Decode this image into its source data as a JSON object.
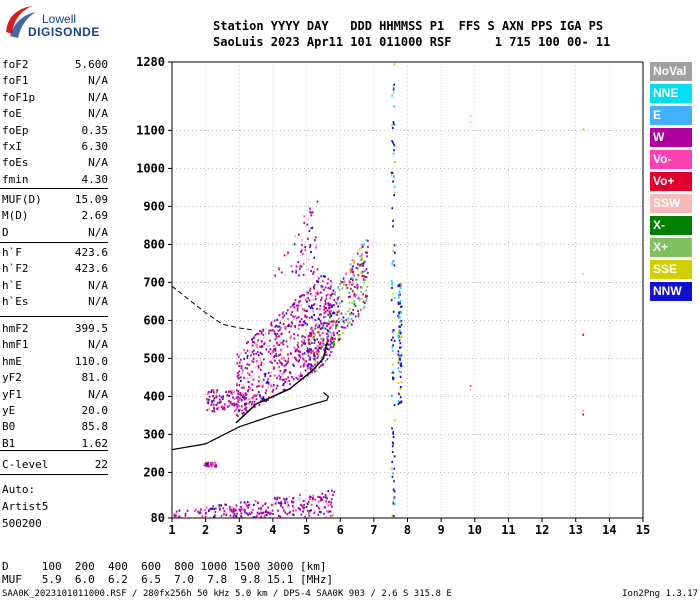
{
  "logo": {
    "line1": "Lowell",
    "line2": "DIGISONDE"
  },
  "header": {
    "line1": "Station YYYY DAY   DDD HHMMSS P1  FFS S AXN PPS IGA PS",
    "line2": "SaoLuis 2023 Apr11 101 011000 RSF      1 715 100 00- 11"
  },
  "params_group1": [
    {
      "name": "foF2",
      "value": "5.600"
    },
    {
      "name": "foF1",
      "value": "N/A"
    },
    {
      "name": "foF1p",
      "value": "N/A"
    },
    {
      "name": "foE",
      "value": "N/A"
    },
    {
      "name": "foEp",
      "value": "0.35"
    },
    {
      "name": "fxI",
      "value": "6.30"
    },
    {
      "name": "foEs",
      "value": "N/A"
    },
    {
      "name": "fmin",
      "value": "4.30"
    }
  ],
  "params_group2": [
    {
      "name": "MUF(D)",
      "value": "15.09"
    },
    {
      "name": "M(D)",
      "value": "2.69"
    },
    {
      "name": "D",
      "value": "N/A"
    }
  ],
  "params_group3": [
    {
      "name": "h`F",
      "value": "423.6"
    },
    {
      "name": "h`F2",
      "value": "423.6"
    },
    {
      "name": "h`E",
      "value": "N/A"
    },
    {
      "name": "h`Es",
      "value": "N/A"
    }
  ],
  "params_group4": [
    {
      "name": "hmF2",
      "value": "399.5"
    },
    {
      "name": "hmF1",
      "value": "N/A"
    },
    {
      "name": "hmE",
      "value": "110.0"
    },
    {
      "name": "yF2",
      "value": "81.0"
    },
    {
      "name": "yF1",
      "value": "N/A"
    },
    {
      "name": "yE",
      "value": "20.0"
    },
    {
      "name": "B0",
      "value": "85.8"
    },
    {
      "name": "B1",
      "value": "1.62"
    }
  ],
  "params_group5": [
    {
      "name": "C-level",
      "value": "22"
    }
  ],
  "auto": {
    "line1": "Auto:",
    "line2": "Artist5",
    "line3": "500200"
  },
  "bottom": {
    "d_line": "D     100  200  400  600  800 1000 1500 3000 [km]",
    "muf_line": "MUF   5.9  6.0  6.2  6.5  7.0  7.8  9.8 15.1 [MHz]"
  },
  "footer": {
    "left": "SAA0K_2023101011000.RSF / 280fx256h 50 kHz 5.0 km / DPS-4 SAA0K 903 / 2.6 S 315.8 E",
    "right": "Ion2Png 1.3.17"
  },
  "legend": [
    {
      "label": "NoVal",
      "color": "#a0a0a0"
    },
    {
      "label": "NNE",
      "color": "#00e0f0"
    },
    {
      "label": "E",
      "color": "#40b0ff"
    },
    {
      "label": "W",
      "color": "#b000a0"
    },
    {
      "label": "Vo-",
      "color": "#ff40b0"
    },
    {
      "label": "Vo+",
      "color": "#e00030"
    },
    {
      "label": "SSW",
      "color": "#f8b8b8"
    },
    {
      "label": "X-",
      "color": "#008000"
    },
    {
      "label": "X+",
      "color": "#80c060"
    },
    {
      "label": "SSE",
      "color": "#d0d000"
    },
    {
      "label": "NNW",
      "color": "#1010d0"
    }
  ],
  "chart_data": {
    "type": "scatter",
    "title": "",
    "xlabel": "",
    "ylabel": "",
    "xlim": [
      1,
      15
    ],
    "ylim": [
      80,
      1280
    ],
    "x_ticks": [
      1,
      2,
      3,
      4,
      5,
      6,
      7,
      8,
      9,
      10,
      11,
      12,
      13,
      14,
      15
    ],
    "y_ticks": [
      80,
      200,
      300,
      400,
      500,
      600,
      700,
      800,
      900,
      1000,
      1100,
      1280
    ],
    "grid": true,
    "legend_position": "right",
    "profile_solid": [
      [
        1.0,
        260
      ],
      [
        2.0,
        275
      ],
      [
        3.0,
        320
      ],
      [
        4.0,
        350
      ],
      [
        5.0,
        375
      ],
      [
        5.6,
        390
      ],
      [
        5.65,
        400
      ],
      [
        5.5,
        410
      ]
    ],
    "profile_dashed": [
      [
        1.0,
        690
      ],
      [
        1.5,
        655
      ],
      [
        2.0,
        620
      ],
      [
        2.5,
        590
      ],
      [
        3.0,
        580
      ],
      [
        3.4,
        575
      ]
    ],
    "trace_black": [
      [
        2.9,
        330
      ],
      [
        3.5,
        380
      ],
      [
        4.5,
        420
      ],
      [
        5.2,
        470
      ],
      [
        5.5,
        500
      ],
      [
        5.6,
        540
      ]
    ],
    "clusters": [
      {
        "region": "F2 main",
        "xmin": 2.9,
        "xmax": 5.8,
        "ymin": 350,
        "ymax": 720,
        "dominant": "W"
      },
      {
        "region": "F2 upper",
        "xmin": 3.9,
        "xmax": 5.3,
        "ymin": 720,
        "ymax": 960,
        "dominant": "W"
      },
      {
        "region": "F2 mixed",
        "xmin": 5.0,
        "xmax": 6.8,
        "ymin": 430,
        "ymax": 820,
        "dominant": "Vo-"
      },
      {
        "region": "low F",
        "xmin": 2.0,
        "xmax": 3.2,
        "ymin": 360,
        "ymax": 420,
        "dominant": "W"
      },
      {
        "region": "E/sporadic",
        "xmin": 1.0,
        "xmax": 5.8,
        "ymin": 84,
        "ymax": 160,
        "dominant": "W"
      },
      {
        "region": "Es patch",
        "xmin": 1.9,
        "xmax": 2.3,
        "ymin": 218,
        "ymax": 228,
        "dominant": "W"
      },
      {
        "region": "interference 7.55",
        "xmin": 7.5,
        "xmax": 7.6,
        "ymin": 84,
        "ymax": 1280,
        "dominant": "NNW"
      },
      {
        "region": "interference 7.75",
        "xmin": 7.7,
        "xmax": 7.8,
        "ymin": 380,
        "ymax": 700,
        "dominant": "NNW"
      }
    ],
    "isolated_points": [
      {
        "x": 9.85,
        "y": 1140,
        "pol": "SSW"
      },
      {
        "x": 9.85,
        "y": 1125,
        "pol": "SSW"
      },
      {
        "x": 9.85,
        "y": 430,
        "pol": "Vo-"
      },
      {
        "x": 9.85,
        "y": 420,
        "pol": "SSW"
      },
      {
        "x": 13.2,
        "y": 1105,
        "pol": "SSE"
      },
      {
        "x": 13.2,
        "y": 725,
        "pol": "SSW"
      },
      {
        "x": 13.2,
        "y": 565,
        "pol": "Vo+"
      },
      {
        "x": 13.2,
        "y": 365,
        "pol": "SSE"
      },
      {
        "x": 13.2,
        "y": 355,
        "pol": "W"
      }
    ]
  }
}
